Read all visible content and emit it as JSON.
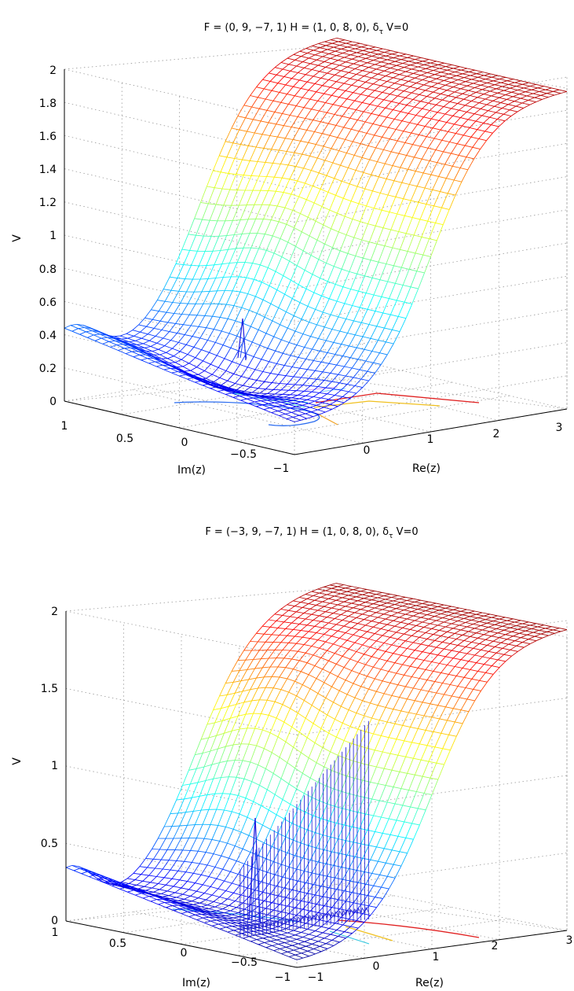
{
  "chart_data": [
    {
      "type": "surface",
      "title_parts": {
        "main": "F = (0, 9, −7, 1) H = (1, 0, 8, 0), δ",
        "sub": "τ",
        "end": " V=0"
      },
      "xlabel": "Re(z)",
      "ylabel": "Im(z)",
      "zlabel": "V",
      "xlim": [
        -1,
        3
      ],
      "ylim": [
        -1,
        1
      ],
      "zlim": [
        0,
        2
      ],
      "x_ticks": [
        "0",
        "1",
        "2",
        "3"
      ],
      "y_ticks": [
        "1",
        "0.5",
        "0",
        "−0.5",
        "−1"
      ],
      "z_ticks": [
        "0",
        "0.2",
        "0.4",
        "0.6",
        "0.8",
        "1",
        "1.2",
        "1.4",
        "1.6",
        "1.8",
        "2"
      ],
      "colormap": "jet",
      "surface_samples_re_im_v": [
        [
          -1,
          1,
          0.45
        ],
        [
          -0.5,
          0,
          0.15
        ],
        [
          0,
          -0.5,
          0.2
        ],
        [
          0.5,
          0,
          0.5
        ],
        [
          1,
          0,
          1.0
        ],
        [
          1.5,
          0,
          1.4
        ],
        [
          2,
          0,
          1.75
        ],
        [
          2.5,
          0,
          1.95
        ],
        [
          3,
          1,
          1.9
        ]
      ],
      "spike_at_re_im": [
        -0.2,
        0.1
      ],
      "base_contours": true
    },
    {
      "type": "surface",
      "title_parts": {
        "main": "F = (−3, 9, −7, 1) H = (1, 0, 8, 0), δ",
        "sub": "τ",
        "end": " V=0"
      },
      "xlabel": "Re(z)",
      "ylabel": "Im(z)",
      "zlabel": "V",
      "xlim": [
        -1,
        3
      ],
      "ylim": [
        -1,
        1
      ],
      "zlim": [
        0,
        2
      ],
      "x_ticks": [
        "−1",
        "0",
        "1",
        "2",
        "3"
      ],
      "y_ticks": [
        "1",
        "0.5",
        "0",
        "−0.5",
        "−1"
      ],
      "z_ticks": [
        "0",
        "0.5",
        "1",
        "1.5",
        "2"
      ],
      "colormap": "jet",
      "surface_samples_re_im_v": [
        [
          -1,
          1,
          0.3
        ],
        [
          -0.5,
          0,
          0.05
        ],
        [
          0,
          -0.5,
          0.05
        ],
        [
          0.5,
          0,
          0.6
        ],
        [
          1,
          0,
          1.1
        ],
        [
          1.5,
          0,
          1.5
        ],
        [
          2,
          0,
          1.85
        ],
        [
          2.5,
          0,
          2.0
        ],
        [
          3,
          1,
          1.95
        ]
      ],
      "curtain_height": 1.3,
      "spike_at_re_im": [
        -0.2,
        0.1
      ],
      "base_contours": true
    }
  ]
}
